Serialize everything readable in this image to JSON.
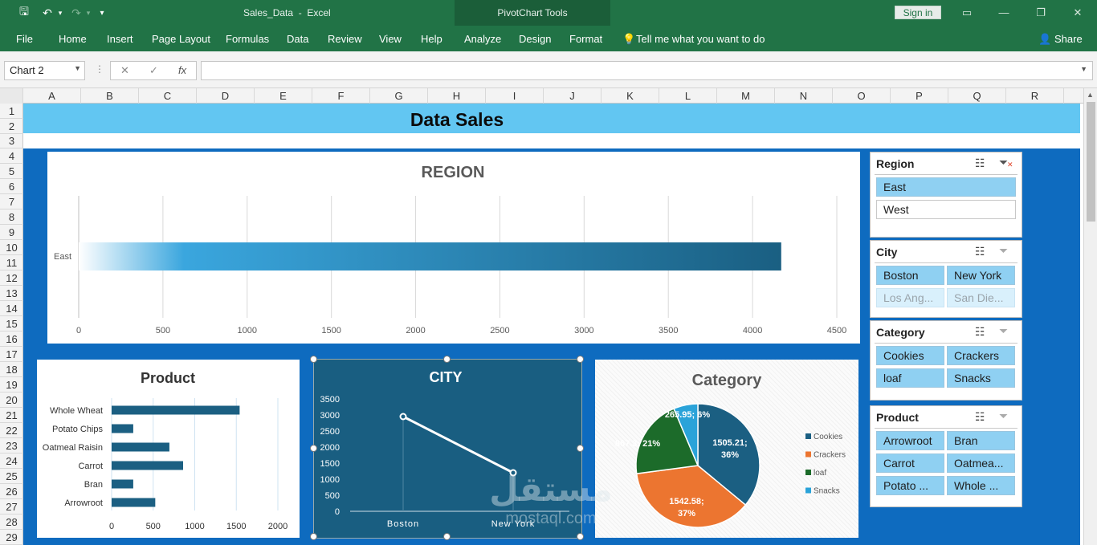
{
  "window": {
    "doc_title": "Sales_Data  -  Excel",
    "context_tab_group": "PivotChart Tools",
    "sign_in": "Sign in",
    "share": "Share",
    "qat": {
      "save": "🖫",
      "undo": "↶",
      "redo": "↷",
      "customize": "▾"
    }
  },
  "ribbon": {
    "tabs": [
      "File",
      "Home",
      "Insert",
      "Page Layout",
      "Formulas",
      "Data",
      "Review",
      "View",
      "Help",
      "Analyze",
      "Design",
      "Format"
    ],
    "tell_me": "Tell me what you want to do"
  },
  "formula_bar": {
    "name_box": "Chart 2",
    "cancel": "✕",
    "enter": "✓",
    "fx": "fx",
    "value": ""
  },
  "grid": {
    "columns": [
      "A",
      "B",
      "C",
      "D",
      "E",
      "F",
      "G",
      "H",
      "I",
      "J",
      "K",
      "L",
      "M",
      "N",
      "O",
      "P",
      "Q",
      "R"
    ],
    "rows": [
      "1",
      "2",
      "3",
      "4",
      "5",
      "6",
      "7",
      "8",
      "9",
      "10",
      "11",
      "12",
      "13",
      "14",
      "15",
      "16",
      "17",
      "18",
      "19",
      "20",
      "21",
      "22",
      "23",
      "24",
      "25",
      "26",
      "27",
      "28",
      "29"
    ]
  },
  "sheet": {
    "banner_title": "Data Sales"
  },
  "slicers": [
    {
      "title": "Region",
      "items": [
        {
          "label": "East",
          "state": "selected"
        },
        {
          "label": "West",
          "state": "unselected"
        }
      ]
    },
    {
      "title": "City",
      "items": [
        {
          "label": "Boston",
          "state": "selected"
        },
        {
          "label": "New York",
          "state": "selected"
        },
        {
          "label": "Los Ang...",
          "state": "nodata"
        },
        {
          "label": "San Die...",
          "state": "nodata"
        }
      ]
    },
    {
      "title": "Category",
      "items": [
        {
          "label": "Cookies",
          "state": "selected"
        },
        {
          "label": "Crackers",
          "state": "selected"
        },
        {
          "label": "loaf",
          "state": "selected"
        },
        {
          "label": "Snacks",
          "state": "selected"
        }
      ]
    },
    {
      "title": "Product",
      "items": [
        {
          "label": "Arrowroot",
          "state": "selected"
        },
        {
          "label": "Bran",
          "state": "selected"
        },
        {
          "label": "Carrot",
          "state": "selected"
        },
        {
          "label": "Oatmea...",
          "state": "selected"
        },
        {
          "label": "Potato ...",
          "state": "selected"
        },
        {
          "label": "Whole ...",
          "state": "selected"
        }
      ]
    }
  ],
  "chart_data": [
    {
      "type": "bar",
      "orientation": "horizontal",
      "title": "REGION",
      "categories": [
        "East"
      ],
      "values": [
        4170
      ],
      "xlim": [
        0,
        4500
      ],
      "ticks": [
        "0",
        "500",
        "1000",
        "1500",
        "2000",
        "2500",
        "3000",
        "3500",
        "4000",
        "4500"
      ],
      "grid": true,
      "legend": "none",
      "colors": {
        "bar_start": "#ffffff",
        "bar_mid": "#3aa6de",
        "bar_end": "#1a5f82"
      }
    },
    {
      "type": "bar",
      "orientation": "horizontal",
      "title": "Product",
      "categories": [
        "Whole Wheat",
        "Potato Chips",
        "Oatmeal Raisin",
        "Carrot",
        "Bran",
        "Arrowroot"
      ],
      "values": [
        1540,
        260,
        695,
        860,
        260,
        525
      ],
      "xlim": [
        0,
        2000
      ],
      "ticks": [
        "0",
        "500",
        "1000",
        "1500",
        "2000"
      ],
      "grid": true,
      "legend": "none",
      "colors": {
        "bar": "#1b5f82"
      }
    },
    {
      "type": "line",
      "title": "CITY",
      "categories": [
        "Boston",
        "New York"
      ],
      "values": [
        2950,
        1200
      ],
      "ylim": [
        0,
        3500
      ],
      "ticks": [
        "0",
        "500",
        "1000",
        "1500",
        "2000",
        "2500",
        "3000",
        "3500"
      ],
      "grid": false,
      "legend": "none",
      "colors": {
        "background": "#195e81",
        "line": "#ffffff"
      }
    },
    {
      "type": "pie",
      "title": "Category",
      "slices": [
        {
          "name": "Cookies",
          "value": 1505.21,
          "label": "1505.21;",
          "label2": "36%",
          "color": "#1b5f82"
        },
        {
          "name": "Crackers",
          "value": 1542.58,
          "label": "1542.58;",
          "label2": "37%",
          "color": "#ec7530"
        },
        {
          "name": "loaf",
          "value": 867.3,
          "label": "867.3; 21%",
          "label2": "",
          "color": "#1c6b2a"
        },
        {
          "name": "Snacks",
          "value": 265.95,
          "label": "265.95; 6%",
          "label2": "",
          "color": "#2aa3d9"
        }
      ],
      "legend": "right"
    }
  ],
  "watermark": {
    "arabic": "مستقل",
    "latin": "mostaql.com"
  }
}
